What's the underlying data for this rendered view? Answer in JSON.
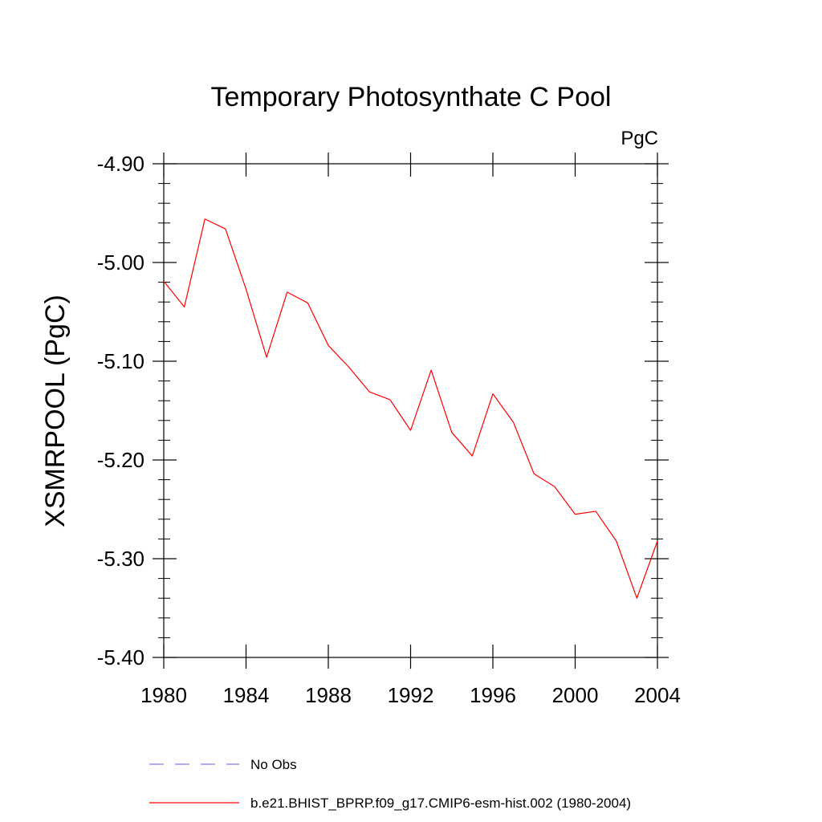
{
  "chart_data": {
    "type": "line",
    "title": "Temporary Photosynthate C Pool",
    "units_label": "PgC",
    "xlabel": "",
    "ylabel": "XSMRPOOL  (PgC)",
    "xlim": [
      1980,
      2004
    ],
    "ylim": [
      -5.4,
      -4.9
    ],
    "x_ticks": [
      "1980",
      "1984",
      "1988",
      "1992",
      "1996",
      "2000",
      "2004"
    ],
    "y_ticks": [
      "-4.90",
      "-5.00",
      "-5.10",
      "-5.20",
      "-5.30",
      "-5.40"
    ],
    "x": [
      1980,
      1981,
      1982,
      1983,
      1984,
      1985,
      1986,
      1987,
      1988,
      1989,
      1990,
      1991,
      1992,
      1993,
      1994,
      1995,
      1996,
      1997,
      1998,
      1999,
      2000,
      2001,
      2002,
      2003,
      2004
    ],
    "series": [
      {
        "name": "b.e21.BHIST_BPRP.f09_g17.CMIP6-esm-hist.002 (1980-2004)",
        "color": "#ff0000",
        "style": "solid",
        "values": [
          -5.019,
          -5.045,
          -4.956,
          -4.966,
          -5.027,
          -5.096,
          -5.03,
          -5.041,
          -5.084,
          -5.106,
          -5.131,
          -5.139,
          -5.17,
          -5.109,
          -5.172,
          -5.196,
          -5.133,
          -5.162,
          -5.214,
          -5.227,
          -5.255,
          -5.252,
          -5.282,
          -5.34,
          -5.282
        ]
      }
    ],
    "legend": [
      {
        "label": "No Obs",
        "color": "#7f7fd9",
        "style": "dashed"
      },
      {
        "label": "b.e21.BHIST_BPRP.f09_g17.CMIP6-esm-hist.002 (1980-2004)",
        "color": "#ff0000",
        "style": "solid"
      }
    ],
    "legend_placement": "bottom",
    "grid": false
  }
}
